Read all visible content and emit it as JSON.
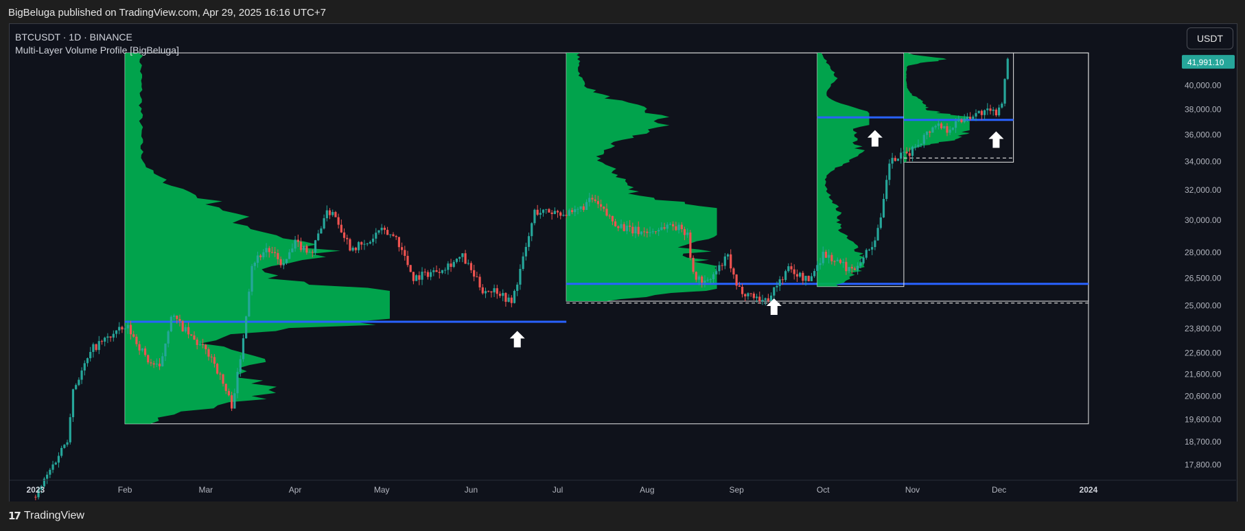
{
  "header": {
    "publisher_line": "BigBeluga published on TradingView.com, Apr 29, 2025 16:16 UTC+7"
  },
  "legend": {
    "symbol_line": "BTCUSDT · 1D · BINANCE",
    "indicator_name": "Multi-Layer Volume Profile [BigBeluga]"
  },
  "currency_button": {
    "label": "USDT"
  },
  "footer": {
    "logo_icon": "tradingview-logo-icon",
    "logo_text": "TradingView"
  },
  "chart_data": {
    "type": "candlestick",
    "y_scale": "log",
    "ylim": [
      17200,
      43500
    ],
    "xlim": [
      "2022-12-23",
      "2024-01-31"
    ],
    "last_price": {
      "value": 41991.1,
      "label": "41,991.10"
    },
    "y_ticks": [
      {
        "value": 40000,
        "label": "40,000.00"
      },
      {
        "value": 38000,
        "label": "38,000.00"
      },
      {
        "value": 36000,
        "label": "36,000.00"
      },
      {
        "value": 34000,
        "label": "34,000.00"
      },
      {
        "value": 32000,
        "label": "32,000.00"
      },
      {
        "value": 30000,
        "label": "30,000.00"
      },
      {
        "value": 28000,
        "label": "28,000.00"
      },
      {
        "value": 26500,
        "label": "26,500.00"
      },
      {
        "value": 25000,
        "label": "25,000.00"
      },
      {
        "value": 23800,
        "label": "23,800.00"
      },
      {
        "value": 22600,
        "label": "22,600.00"
      },
      {
        "value": 21600,
        "label": "21,600.00"
      },
      {
        "value": 20600,
        "label": "20,600.00"
      },
      {
        "value": 19600,
        "label": "19,600.00"
      },
      {
        "value": 18700,
        "label": "18,700.00"
      },
      {
        "value": 17800,
        "label": "17,800.00"
      }
    ],
    "x_ticks": [
      {
        "date": "2023-01-01",
        "label": "2023",
        "bold": true
      },
      {
        "date": "2023-02-01",
        "label": "Feb"
      },
      {
        "date": "2023-03-01",
        "label": "Mar"
      },
      {
        "date": "2023-04-01",
        "label": "Apr"
      },
      {
        "date": "2023-05-01",
        "label": "May"
      },
      {
        "date": "2023-06-01",
        "label": "Jun"
      },
      {
        "date": "2023-07-01",
        "label": "Jul"
      },
      {
        "date": "2023-08-01",
        "label": "Aug"
      },
      {
        "date": "2023-09-01",
        "label": "Sep"
      },
      {
        "date": "2023-10-01",
        "label": "Oct"
      },
      {
        "date": "2023-11-01",
        "label": "Nov"
      },
      {
        "date": "2023-12-01",
        "label": "Dec"
      },
      {
        "date": "2024-01-01",
        "label": "2024",
        "bold": true
      }
    ],
    "price_path": [
      [
        "2023-01-01",
        16600
      ],
      [
        "2023-01-12",
        18800
      ],
      [
        "2023-01-14",
        20900
      ],
      [
        "2023-01-21",
        22800
      ],
      [
        "2023-01-29",
        23600
      ],
      [
        "2023-02-02",
        23800
      ],
      [
        "2023-02-09",
        22200
      ],
      [
        "2023-02-13",
        21800
      ],
      [
        "2023-02-17",
        24500
      ],
      [
        "2023-02-24",
        23300
      ],
      [
        "2023-03-03",
        22400
      ],
      [
        "2023-03-10",
        20200
      ],
      [
        "2023-03-13",
        22200
      ],
      [
        "2023-03-17",
        27300
      ],
      [
        "2023-03-22",
        28200
      ],
      [
        "2023-03-28",
        27200
      ],
      [
        "2023-04-01",
        28500
      ],
      [
        "2023-04-07",
        28000
      ],
      [
        "2023-04-11",
        30200
      ],
      [
        "2023-04-14",
        30600
      ],
      [
        "2023-04-20",
        28300
      ],
      [
        "2023-04-26",
        28400
      ],
      [
        "2023-04-30",
        29300
      ],
      [
        "2023-05-06",
        28900
      ],
      [
        "2023-05-12",
        26500
      ],
      [
        "2023-05-20",
        26900
      ],
      [
        "2023-05-29",
        27700
      ],
      [
        "2023-06-05",
        25800
      ],
      [
        "2023-06-10",
        25800
      ],
      [
        "2023-06-15",
        25100
      ],
      [
        "2023-06-20",
        28200
      ],
      [
        "2023-06-23",
        30500
      ],
      [
        "2023-07-01",
        30500
      ],
      [
        "2023-07-06",
        30300
      ],
      [
        "2023-07-13",
        31300
      ],
      [
        "2023-07-20",
        29900
      ],
      [
        "2023-07-26",
        29300
      ],
      [
        "2023-08-02",
        29200
      ],
      [
        "2023-08-09",
        29700
      ],
      [
        "2023-08-15",
        29200
      ],
      [
        "2023-08-17",
        26600
      ],
      [
        "2023-08-22",
        26200
      ],
      [
        "2023-08-29",
        27700
      ],
      [
        "2023-09-01",
        25900
      ],
      [
        "2023-09-11",
        25200
      ],
      [
        "2023-09-19",
        27000
      ],
      [
        "2023-09-26",
        26300
      ],
      [
        "2023-10-01",
        27900
      ],
      [
        "2023-10-11",
        26900
      ],
      [
        "2023-10-18",
        28400
      ],
      [
        "2023-10-21",
        29900
      ],
      [
        "2023-10-24",
        33900
      ],
      [
        "2023-10-31",
        34600
      ],
      [
        "2023-11-09",
        36800
      ],
      [
        "2023-11-13",
        36400
      ],
      [
        "2023-11-20",
        37400
      ],
      [
        "2023-11-25",
        37700
      ],
      [
        "2023-11-30",
        37700
      ],
      [
        "2023-12-02",
        38700
      ],
      [
        "2023-12-04",
        41991
      ]
    ],
    "volume_profiles": [
      {
        "from": "2023-02-01",
        "to": "2023-07-04",
        "box_to": "2024-01-01",
        "price_low": 19400,
        "price_high": 42800,
        "poc": 24120,
        "poc_to": "2023-07-04",
        "hvn": [
          [
            25100,
            1.0,
            0.045
          ],
          [
            28000,
            0.62,
            0.05
          ],
          [
            24600,
            0.55,
            0.05
          ],
          [
            22100,
            0.4,
            0.04
          ],
          [
            20700,
            0.45,
            0.04
          ],
          [
            30500,
            0.3,
            0.06
          ]
        ],
        "base_width": 0.06
      },
      {
        "from": "2023-07-04",
        "to": "2023-09-29",
        "box_to": "2024-01-01",
        "price_low": 25200,
        "price_high": 42800,
        "poc": 26150,
        "poc_to": "2024-01-01",
        "low_line": 25100,
        "hvn": [
          [
            26150,
            1.0,
            0.03
          ],
          [
            27400,
            0.7,
            0.04
          ],
          [
            29300,
            0.85,
            0.04
          ],
          [
            30200,
            0.9,
            0.035
          ],
          [
            37000,
            0.55,
            0.05
          ],
          [
            32400,
            0.3,
            0.05
          ]
        ],
        "base_width": 0.08
      },
      {
        "from": "2023-09-29",
        "to": "2023-10-29",
        "box_to": "2023-10-29",
        "price_low": 26000,
        "price_high": 42800,
        "poc": 37300,
        "poc_to": "2023-10-29",
        "hvn": [
          [
            37300,
            1.0,
            0.03
          ],
          [
            34800,
            0.75,
            0.04
          ],
          [
            28000,
            0.6,
            0.04
          ],
          [
            26800,
            0.5,
            0.04
          ],
          [
            30300,
            0.35,
            0.05
          ],
          [
            40800,
            0.3,
            0.03
          ]
        ],
        "base_width": 0.06
      },
      {
        "from": "2023-10-29",
        "to": "2023-12-06",
        "box_to": "2023-12-06",
        "price_low": 33900,
        "price_high": 42800,
        "poc": 37100,
        "poc_to": "2023-12-06",
        "low_line": 34200,
        "hvn": [
          [
            37100,
            1.0,
            0.015
          ],
          [
            36400,
            0.8,
            0.015
          ],
          [
            35600,
            0.6,
            0.015
          ],
          [
            42200,
            0.55,
            0.008
          ],
          [
            38300,
            0.3,
            0.02
          ]
        ],
        "base_width": 0.04
      }
    ],
    "arrows": [
      {
        "date": "2023-06-17",
        "price": 23650
      },
      {
        "date": "2023-09-14",
        "price": 25350
      },
      {
        "date": "2023-10-19",
        "price": 36300
      },
      {
        "date": "2023-11-30",
        "price": 36200
      }
    ],
    "colors": {
      "background": "#0f121b",
      "up": "#26a69a",
      "down": "#ef5350",
      "profile": "#00b050",
      "poc": "#2962ff",
      "arrow": "#ffffff",
      "axis_text": "#b2b5be",
      "price_badge": "#26a69a"
    }
  }
}
